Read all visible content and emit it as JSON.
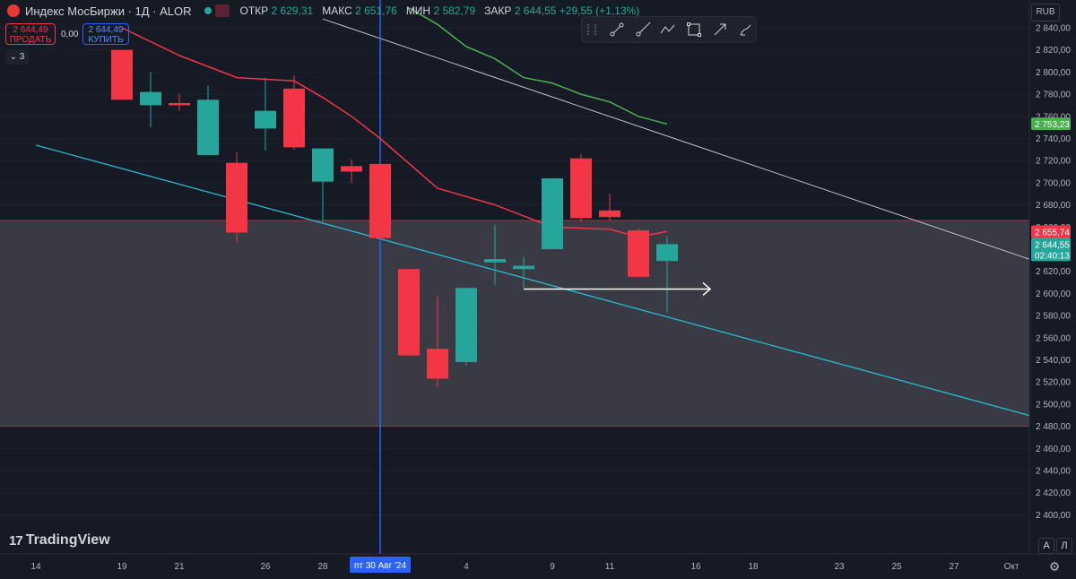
{
  "header": {
    "symbol": "Индекс МосБиржи · 1Д · ALOR",
    "wave_icon": "≈",
    "ohlc": [
      {
        "key": "ОТКР",
        "value": "2 629,31"
      },
      {
        "key": "МАКС",
        "value": "2 651,76"
      },
      {
        "key": "МИН",
        "value": "2 582,79"
      },
      {
        "key": "ЗАКР",
        "value": "2 644,55 +29,55 (+1,13%)"
      }
    ]
  },
  "trade": {
    "sell_price": "2 644,49",
    "sell_label": "ПРОДАТЬ",
    "spread": "0,00",
    "buy_price": "2 644,49",
    "buy_label": "КУПИТЬ"
  },
  "indicators_count": "3",
  "currency": "RUB",
  "logo_text": "TradingView",
  "logo_mark": "17",
  "auto_label": "A",
  "log_label": "Л",
  "colors": {
    "up": "#26a69a",
    "down": "#f23645",
    "ma_red": "#f23645",
    "ma_green": "#4caf50",
    "trend_cyan": "#26c6da",
    "trend_white": "#d1d4dc",
    "crosshair": "#2962ff"
  },
  "chart_data": {
    "type": "candlestick",
    "ylim": [
      2380,
      2850
    ],
    "y_ticks": [
      2400,
      2420,
      2440,
      2460,
      2480,
      2500,
      2520,
      2540,
      2560,
      2580,
      2600,
      2620,
      2640,
      2660,
      2680,
      2700,
      2720,
      2740,
      2760,
      2780,
      2800,
      2820,
      2840
    ],
    "y_tick_labels": [
      "2 400,00",
      "2 420,00",
      "2 440,00",
      "2 460,00",
      "2 480,00",
      "2 500,00",
      "2 520,00",
      "2 540,00",
      "2 560,00",
      "2 580,00",
      "2 600,00",
      "2 620,00",
      "2 640,00",
      "2 660,00",
      "2 680,00",
      "2 700,00",
      "2 720,00",
      "2 740,00",
      "2 760,00",
      "2 780,00",
      "2 800,00",
      "2 820,00",
      "2 840,00"
    ],
    "x_tick_labels": [
      {
        "label": "14",
        "session": -3
      },
      {
        "label": "19",
        "session": 0
      },
      {
        "label": "21",
        "session": 2
      },
      {
        "label": "26",
        "session": 5
      },
      {
        "label": "28",
        "session": 7
      },
      {
        "label": "4",
        "session": 12
      },
      {
        "label": "9",
        "session": 15
      },
      {
        "label": "11",
        "session": 17
      },
      {
        "label": "16",
        "session": 20
      },
      {
        "label": "18",
        "session": 22
      },
      {
        "label": "23",
        "session": 25
      },
      {
        "label": "25",
        "session": 27
      },
      {
        "label": "27",
        "session": 29
      },
      {
        "label": "Окт",
        "session": 31
      }
    ],
    "candles": [
      {
        "open": 2820,
        "high": 2820,
        "low": 2775,
        "close": 2775
      },
      {
        "open": 2770,
        "high": 2800,
        "low": 2750,
        "close": 2782
      },
      {
        "open": 2772,
        "high": 2780,
        "low": 2765,
        "close": 2770
      },
      {
        "open": 2725,
        "high": 2788,
        "low": 2725,
        "close": 2775
      },
      {
        "open": 2718,
        "high": 2728,
        "low": 2646,
        "close": 2655
      },
      {
        "open": 2749,
        "high": 2795,
        "low": 2729,
        "close": 2765
      },
      {
        "open": 2785,
        "high": 2797,
        "low": 2730,
        "close": 2732
      },
      {
        "open": 2701,
        "high": 2731,
        "low": 2665,
        "close": 2731
      },
      {
        "open": 2715,
        "high": 2721,
        "low": 2700,
        "close": 2710
      },
      {
        "open": 2717,
        "high": 2718,
        "low": 2649,
        "close": 2650
      },
      {
        "open": 2622,
        "high": 2622,
        "low": 2544,
        "close": 2544
      },
      {
        "open": 2550,
        "high": 2598,
        "low": 2515,
        "close": 2523
      },
      {
        "open": 2538,
        "high": 2605,
        "low": 2535,
        "close": 2605
      },
      {
        "open": 2628,
        "high": 2662,
        "low": 2608,
        "close": 2631
      },
      {
        "open": 2622,
        "high": 2633,
        "low": 2605,
        "close": 2625
      },
      {
        "open": 2640,
        "high": 2704,
        "low": 2640,
        "close": 2704
      },
      {
        "open": 2722,
        "high": 2726,
        "low": 2665,
        "close": 2668
      },
      {
        "open": 2675,
        "high": 2690,
        "low": 2665,
        "close": 2669
      },
      {
        "open": 2657,
        "high": 2659,
        "low": 2614,
        "close": 2615
      },
      {
        "open": 2629.31,
        "high": 2651.76,
        "low": 2582.79,
        "close": 2644.55
      }
    ],
    "ma_red": [
      [
        0,
        2840
      ],
      [
        2,
        2815
      ],
      [
        4,
        2795
      ],
      [
        6,
        2792
      ],
      [
        7,
        2777
      ],
      [
        8,
        2760
      ],
      [
        9,
        2740
      ],
      [
        11,
        2695
      ],
      [
        13,
        2680
      ],
      [
        15,
        2660
      ],
      [
        17,
        2658
      ],
      [
        18,
        2651
      ],
      [
        19,
        2656
      ]
    ],
    "ma_green": [
      [
        10,
        2858
      ],
      [
        11,
        2843
      ],
      [
        12,
        2823
      ],
      [
        13,
        2812
      ],
      [
        14,
        2795
      ],
      [
        15,
        2790
      ],
      [
        16,
        2780
      ],
      [
        17,
        2773
      ],
      [
        18,
        2760
      ],
      [
        19,
        2753
      ]
    ],
    "trend_cyan": [
      [
        -3,
        2734
      ],
      [
        34,
        2473
      ]
    ],
    "trend_white": [
      [
        7,
        2848
      ],
      [
        34,
        2610
      ]
    ],
    "zone": [
      2480,
      2666
    ],
    "arrow": {
      "from_session": 14,
      "to_session": 20,
      "y": 2604
    },
    "crosshair": {
      "session": 9,
      "label": "пт 30 Авг '24"
    },
    "price_labels": [
      {
        "text": "2 753,23",
        "y": 2753.23,
        "color": "#4caf50"
      },
      {
        "text": "2 655,74",
        "y": 2655.74,
        "color": "#f23645"
      },
      {
        "text": "2 644,55",
        "y": 2644.55,
        "color": "#26a69a",
        "sub": "02:40:13"
      }
    ],
    "partial_label": {
      "text": "2 660,00",
      "y": 2660
    }
  }
}
